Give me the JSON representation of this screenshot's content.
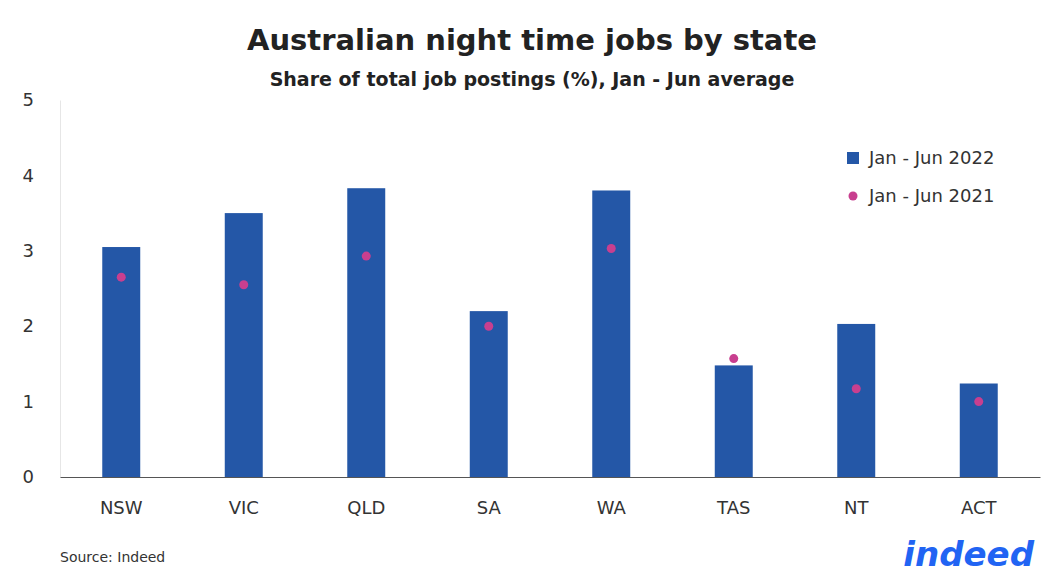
{
  "chart_data": {
    "type": "bar",
    "title": "Australian night time jobs by state",
    "subtitle": "Share of total job postings (%), Jan - Jun average",
    "categories": [
      "NSW",
      "VIC",
      "QLD",
      "SA",
      "WA",
      "TAS",
      "NT",
      "ACT"
    ],
    "series": [
      {
        "name": "Jan - Jun 2022",
        "type": "bar",
        "color": "#2457a7",
        "values": [
          3.05,
          3.5,
          3.83,
          2.2,
          3.8,
          1.48,
          2.03,
          1.24
        ]
      },
      {
        "name": "Jan - Jun 2021",
        "type": "scatter",
        "marker": "circle",
        "color": "#c83f8f",
        "values": [
          2.65,
          2.55,
          2.93,
          2.0,
          3.03,
          1.57,
          1.17,
          1.0
        ]
      }
    ],
    "ylim": [
      0,
      5
    ],
    "yticks": [
      0,
      1,
      2,
      3,
      4,
      5
    ],
    "grid": false,
    "legend": "upper right",
    "source": "Source: Indeed",
    "logo": "indeed"
  }
}
